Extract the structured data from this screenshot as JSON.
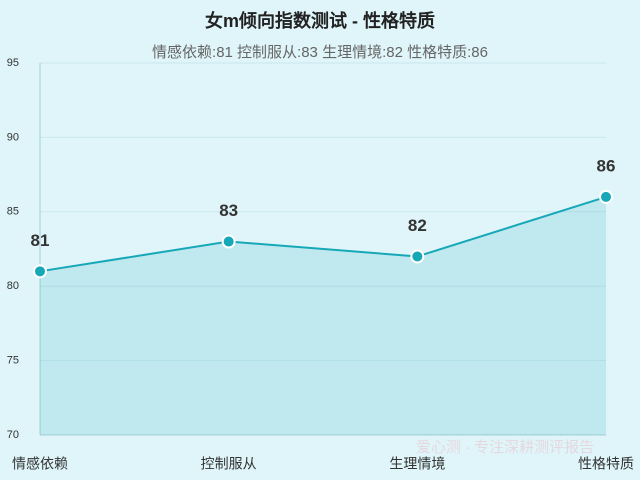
{
  "chart_data": {
    "type": "line",
    "title": "女m倾向指数测试 - 性格特质",
    "subtitle": "情感依赖:81 控制服从:83 生理情境:82 性格特质:86",
    "categories": [
      "情感依赖",
      "控制服从",
      "生理情境",
      "性格特质"
    ],
    "series": [
      {
        "color": "#17a8b8",
        "values": [
          81,
          83,
          82,
          86
        ]
      }
    ],
    "ylim": [
      70,
      95
    ],
    "yticks": [
      70,
      75,
      80,
      85,
      90,
      95
    ],
    "grid": true,
    "area": true,
    "watermark": "爱心测 · 专注深耕测评报告"
  }
}
